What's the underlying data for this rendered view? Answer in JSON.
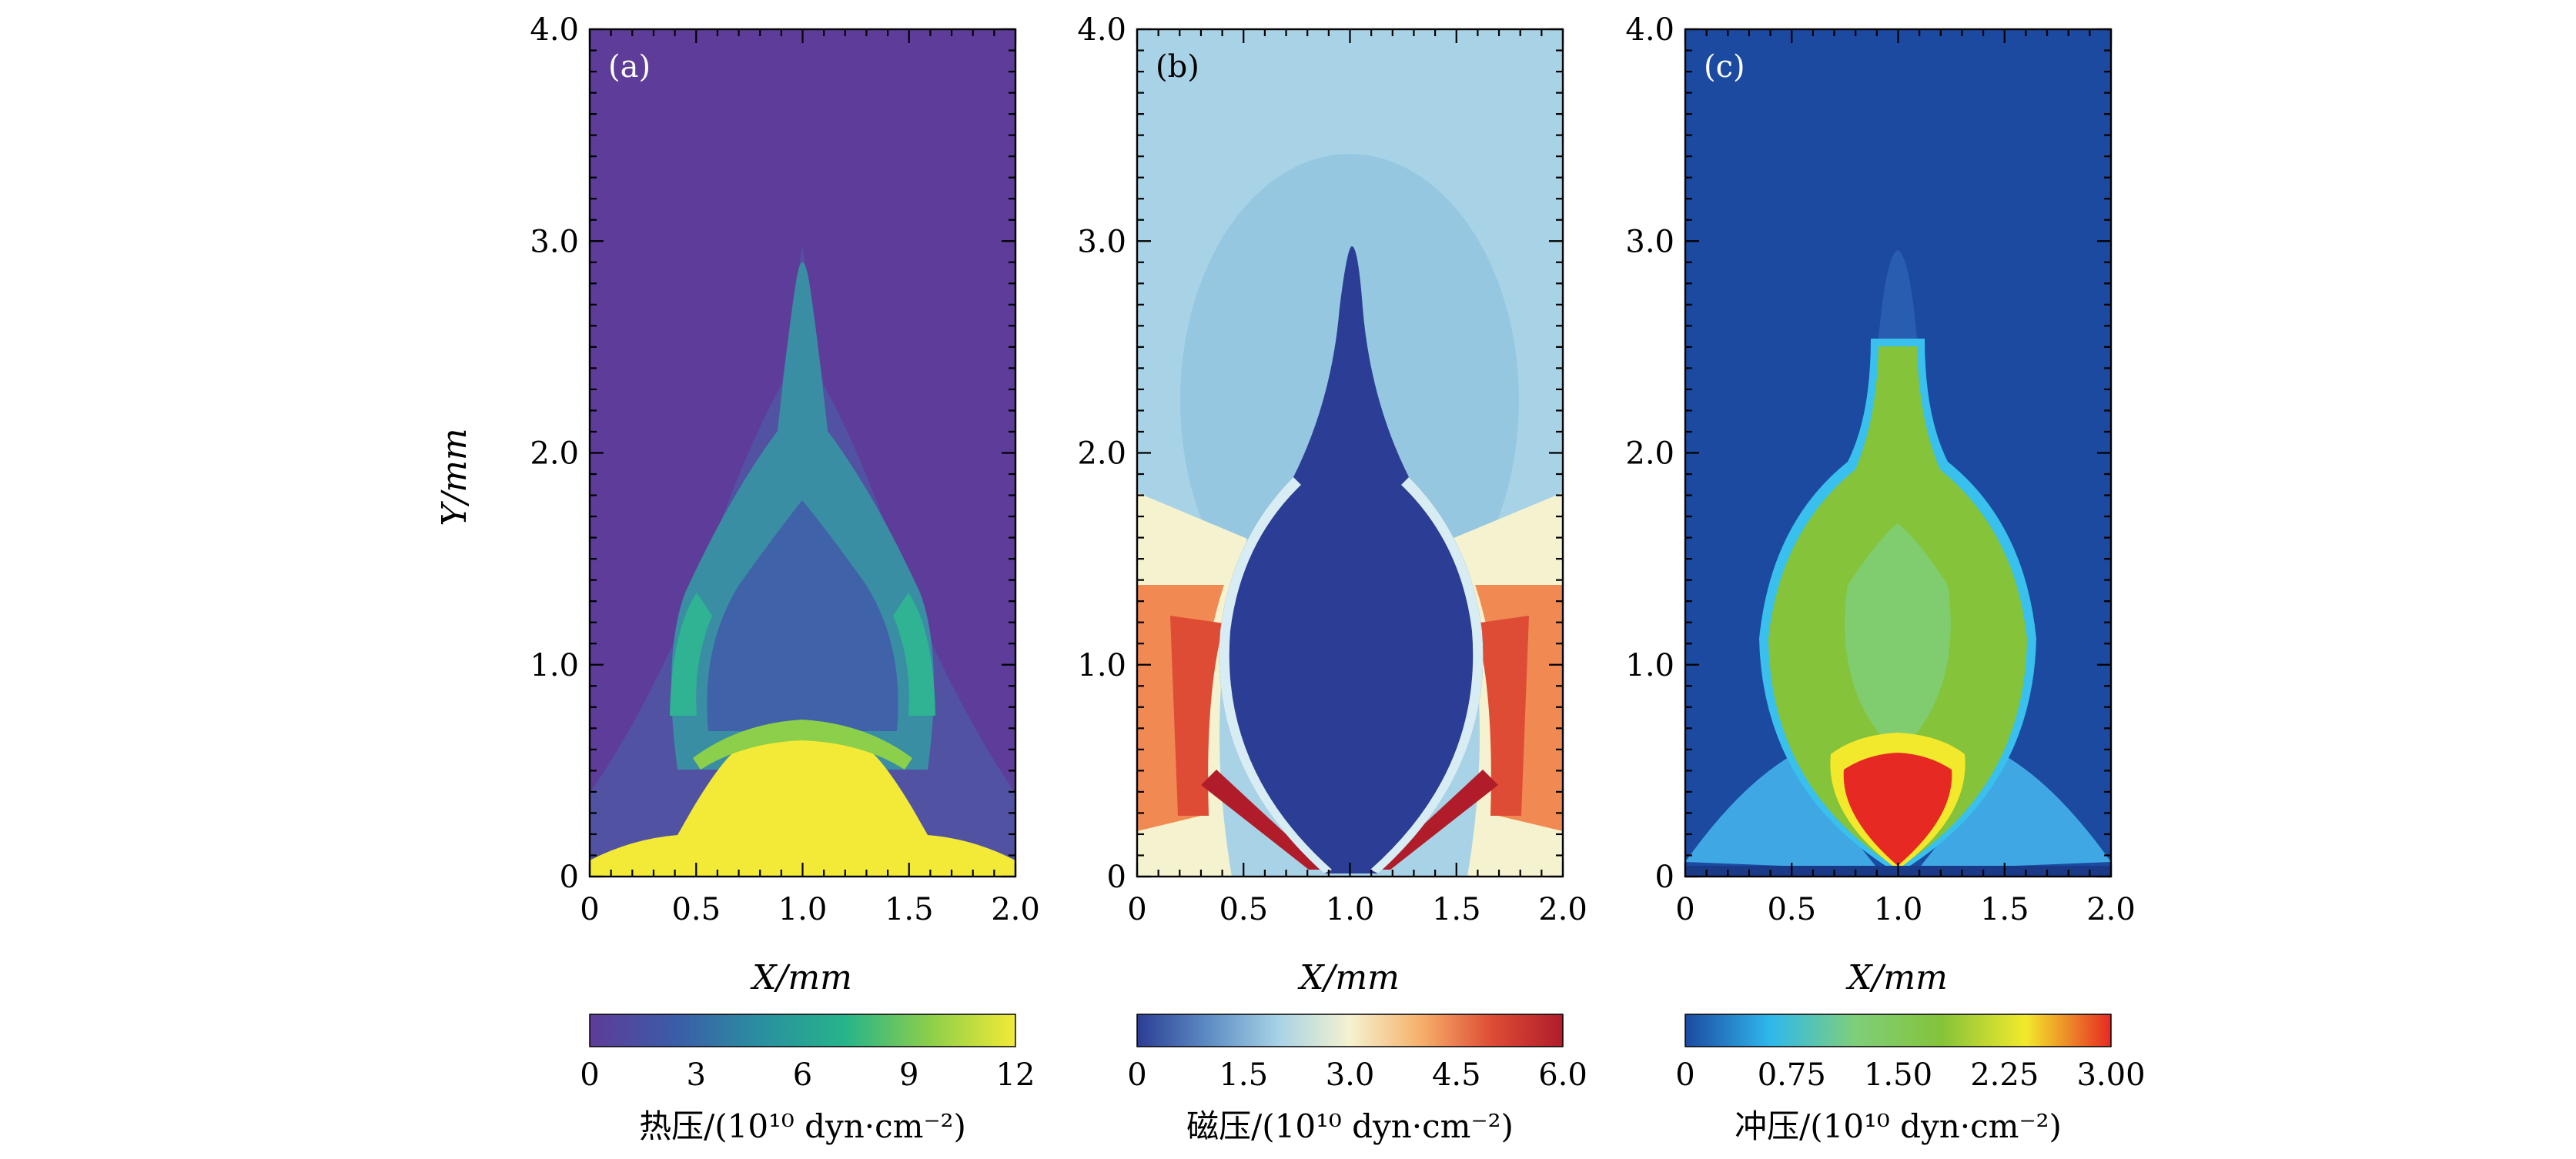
{
  "chart_data": [
    {
      "type": "heatmap",
      "panel_label": "(a)",
      "xlabel": "X/mm",
      "ylabel": "Y/mm",
      "xlim": [
        0,
        2.0
      ],
      "ylim": [
        0,
        4.0
      ],
      "x_ticks": [
        "0",
        "0.5",
        "1.0",
        "1.5",
        "2.0"
      ],
      "y_ticks": [
        "0",
        "1.0",
        "2.0",
        "3.0",
        "4.0"
      ],
      "colorbar": {
        "label": "热压/(10¹⁰ dyn·cm⁻²)",
        "range": [
          0,
          12
        ],
        "ticks": [
          "0",
          "3",
          "6",
          "9",
          "12"
        ],
        "colormap": "viridis",
        "colors": [
          "#5e3c99",
          "#3b5ca8",
          "#2a8fa0",
          "#26b48a",
          "#8ccf4a",
          "#f2ea36"
        ]
      },
      "features": {
        "background_color": "#5e3c99",
        "plume_tip_y": 2.95,
        "plume_max_x_halfwidth": 0.6,
        "dense_region_top_y": 0.65
      }
    },
    {
      "type": "heatmap",
      "panel_label": "(b)",
      "xlabel": "X/mm",
      "xlim": [
        0,
        2.0
      ],
      "ylim": [
        0,
        4.0
      ],
      "x_ticks": [
        "0",
        "0.5",
        "1.0",
        "1.5",
        "2.0"
      ],
      "y_ticks": [
        "0",
        "1.0",
        "2.0",
        "3.0",
        "4.0"
      ],
      "colorbar": {
        "label": "磁压/(10¹⁰ dyn·cm⁻²)",
        "range": [
          0,
          6.0
        ],
        "ticks": [
          "0",
          "1.5",
          "3.0",
          "4.5",
          "6.0"
        ],
        "colormap": "RdYlBu_r",
        "colors": [
          "#2b3d94",
          "#5d8cc4",
          "#a8d3e6",
          "#f5f2cf",
          "#f6b06b",
          "#de4c35",
          "#b01c2a"
        ]
      },
      "features": {
        "background_color": "#a8d3e6",
        "plume_tip_y": 2.95,
        "cavity_color": "#2b3d94"
      }
    },
    {
      "type": "heatmap",
      "panel_label": "(c)",
      "xlabel": "X/mm",
      "xlim": [
        0,
        2.0
      ],
      "ylim": [
        0,
        4.0
      ],
      "x_ticks": [
        "0",
        "0.5",
        "1.0",
        "1.5",
        "2.0"
      ],
      "y_ticks": [
        "0",
        "1.0",
        "2.0",
        "3.0",
        "4.0"
      ],
      "colorbar": {
        "label": "冲压/(10¹⁰ dyn·cm⁻²)",
        "range": [
          0,
          3.0
        ],
        "ticks": [
          "0",
          "0.75",
          "1.50",
          "2.25",
          "3.00"
        ],
        "colormap": "jet-like",
        "colors": [
          "#1c4aa1",
          "#2fb8ec",
          "#7fcf7a",
          "#84c33a",
          "#f3e92c",
          "#e62a23"
        ]
      },
      "features": {
        "background_color": "#1c4aa1",
        "plume_tip_y": 2.55,
        "core_color": "#e62a23"
      }
    }
  ]
}
